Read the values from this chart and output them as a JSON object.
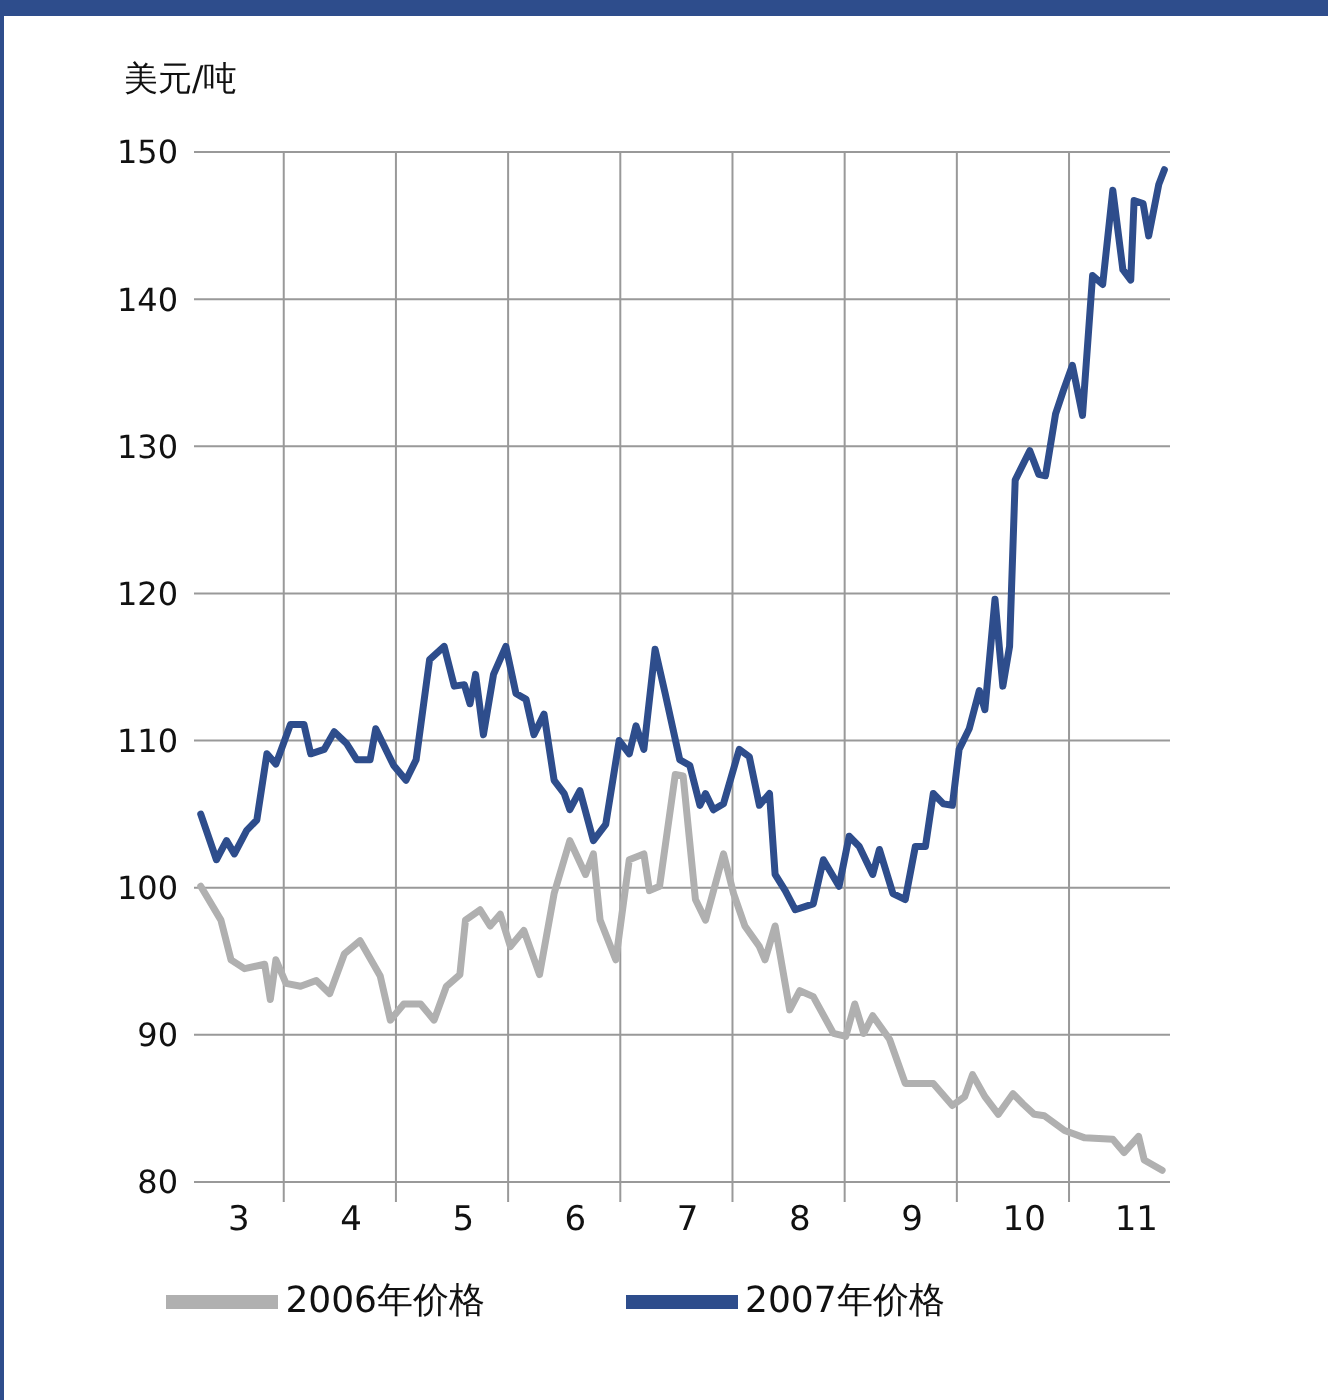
{
  "chart_data": {
    "type": "line",
    "ylabel": "美元/吨",
    "xlim": [
      2.6,
      11.3
    ],
    "xticks": [
      3,
      {
        "value": 3.4,
        "label": null
      },
      4,
      {
        "value": 4.4,
        "label": null
      },
      5,
      {
        "value": 5.4,
        "label": null
      },
      6,
      {
        "value": 6.4,
        "label": null
      },
      7,
      {
        "value": 7.4,
        "label": null
      },
      8,
      {
        "value": 8.4,
        "label": null
      },
      9,
      {
        "value": 9.4,
        "label": null
      },
      10,
      {
        "value": 10.4,
        "label": null
      },
      11
    ],
    "ylim": [
      80,
      150
    ],
    "yticks": [
      80,
      90,
      100,
      110,
      120,
      130,
      140,
      150
    ],
    "grid": true,
    "legend": "bottom",
    "marker": "none",
    "line_style": "solid",
    "series": [
      {
        "name": "2006年价格",
        "color": "#b0b0b0",
        "x": [
          2.66,
          2.84,
          2.93,
          3.05,
          3.23,
          3.28,
          3.33,
          3.42,
          3.55,
          3.69,
          3.81,
          3.94,
          4.08,
          4.26,
          4.35,
          4.47,
          4.62,
          4.74,
          4.85,
          4.97,
          5.02,
          5.15,
          5.24,
          5.33,
          5.42,
          5.54,
          5.68,
          5.81,
          5.95,
          6.09,
          6.16,
          6.22,
          6.36,
          6.48,
          6.61,
          6.66,
          6.75,
          6.89,
          6.96,
          7.07,
          7.16,
          7.32,
          7.41,
          7.51,
          7.64,
          7.69,
          7.78,
          7.91,
          8.0,
          8.12,
          8.3,
          8.41,
          8.49,
          8.57,
          8.65,
          8.8,
          8.94,
          9.19,
          9.36,
          9.47,
          9.54,
          9.65,
          9.77,
          9.9,
          9.99,
          10.09,
          10.18,
          10.36,
          10.54,
          10.79,
          10.89,
          11.02,
          11.07,
          11.23
        ],
        "values": [
          100.1,
          97.8,
          95.1,
          94.5,
          94.8,
          92.4,
          95.1,
          93.5,
          93.3,
          93.7,
          92.8,
          95.5,
          96.4,
          94.0,
          91.0,
          92.1,
          92.1,
          91.0,
          93.3,
          94.1,
          97.8,
          98.5,
          97.4,
          98.2,
          96.0,
          97.1,
          94.1,
          99.6,
          103.2,
          100.9,
          102.3,
          97.8,
          95.1,
          101.9,
          102.3,
          99.8,
          100.1,
          107.7,
          107.6,
          99.2,
          97.8,
          102.3,
          99.6,
          97.4,
          96.0,
          95.1,
          97.4,
          91.7,
          93.0,
          92.6,
          90.1,
          89.9,
          92.1,
          90.1,
          91.3,
          89.7,
          86.7,
          86.7,
          85.2,
          85.8,
          87.3,
          85.8,
          84.6,
          86.0,
          85.3,
          84.6,
          84.5,
          83.5,
          83.0,
          82.9,
          82.0,
          83.1,
          81.5,
          80.8
        ]
      },
      {
        "name": "2007年价格",
        "color": "#2e4d8c",
        "x": [
          2.66,
          2.8,
          2.89,
          2.96,
          3.07,
          3.16,
          3.25,
          3.33,
          3.46,
          3.58,
          3.64,
          3.76,
          3.85,
          3.96,
          4.05,
          4.17,
          4.22,
          4.38,
          4.49,
          4.58,
          4.7,
          4.83,
          4.92,
          5.01,
          5.06,
          5.11,
          5.18,
          5.27,
          5.38,
          5.47,
          5.56,
          5.63,
          5.72,
          5.81,
          5.9,
          5.95,
          6.04,
          6.16,
          6.27,
          6.39,
          6.48,
          6.54,
          6.61,
          6.71,
          6.8,
          6.93,
          7.02,
          7.11,
          7.16,
          7.23,
          7.32,
          7.46,
          7.55,
          7.64,
          7.73,
          7.78,
          7.87,
          7.96,
          8.12,
          8.21,
          8.35,
          8.44,
          8.53,
          8.65,
          8.71,
          8.83,
          8.94,
          9.03,
          9.12,
          9.19,
          9.28,
          9.36,
          9.42,
          9.51,
          9.6,
          9.65,
          9.74,
          9.81,
          9.87,
          9.92,
          10.05,
          10.13,
          10.19,
          10.28,
          10.35,
          10.43,
          10.52,
          10.61,
          10.7,
          10.79,
          10.88,
          10.95,
          10.98,
          11.06,
          11.11,
          11.2,
          11.25
        ],
        "values": [
          105.0,
          101.9,
          103.2,
          102.3,
          103.9,
          104.6,
          109.1,
          108.4,
          111.1,
          111.1,
          109.1,
          109.4,
          110.6,
          109.8,
          108.7,
          108.7,
          110.8,
          108.3,
          107.3,
          108.7,
          115.5,
          116.4,
          113.7,
          113.8,
          112.5,
          114.5,
          110.4,
          114.5,
          116.4,
          113.2,
          112.8,
          110.4,
          111.8,
          107.3,
          106.4,
          105.3,
          106.6,
          103.2,
          104.3,
          110.0,
          109.1,
          111.0,
          109.4,
          116.2,
          113.2,
          108.7,
          108.3,
          105.6,
          106.4,
          105.3,
          105.7,
          109.4,
          108.9,
          105.6,
          106.4,
          100.9,
          99.8,
          98.5,
          98.9,
          101.9,
          100.1,
          103.5,
          102.8,
          100.9,
          102.6,
          99.6,
          99.2,
          102.8,
          102.8,
          106.4,
          105.7,
          105.6,
          109.4,
          110.8,
          113.4,
          112.1,
          119.6,
          113.7,
          116.4,
          127.7,
          129.7,
          128.1,
          128.0,
          132.2,
          133.8,
          135.5,
          132.1,
          141.6,
          141.0,
          147.4,
          142.0,
          141.3,
          146.7,
          146.5,
          144.3,
          147.8,
          148.8
        ]
      }
    ]
  }
}
